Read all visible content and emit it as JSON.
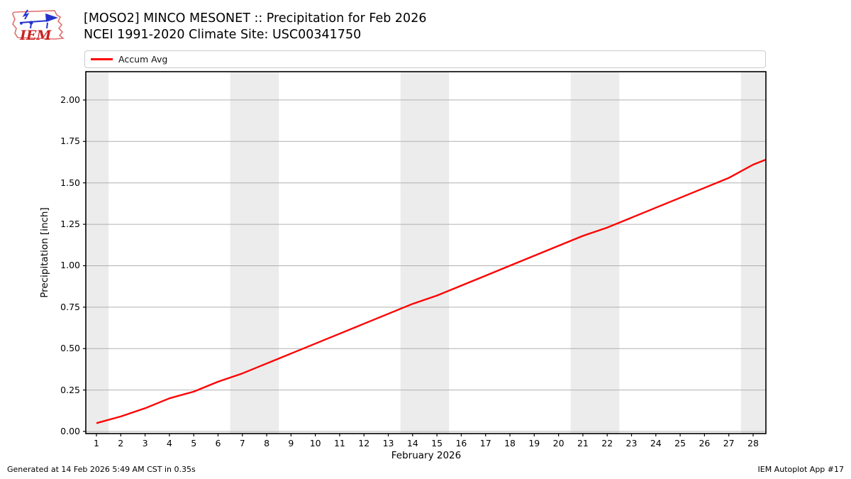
{
  "header": {
    "title": "[MOSO2] MINCO MESONET :: Precipitation for Feb 2026",
    "subtitle": "NCEI 1991-2020 Climate Site: USC00341750",
    "logo_text": "IEM"
  },
  "legend": {
    "items": [
      {
        "label": "Accum Avg",
        "color": "#ff0000"
      }
    ]
  },
  "chart_data": {
    "type": "line",
    "title": "[MOSO2] MINCO MESONET :: Precipitation for Feb 2026",
    "subtitle": "NCEI 1991-2020 Climate Site: USC00341750",
    "xlabel": "February 2026",
    "ylabel": "Precipitation [inch]",
    "xlim": [
      0.563,
      28.525
    ],
    "ylim": [
      -0.013,
      2.171
    ],
    "grid": true,
    "grid_color": "#b0b0b0",
    "band_color": "#ececec",
    "weekend_bands": [
      [
        0.563,
        1.5
      ],
      [
        6.5,
        8.5
      ],
      [
        13.5,
        15.5
      ],
      [
        20.5,
        22.5
      ],
      [
        27.5,
        28.525
      ]
    ],
    "yticks": [
      0.0,
      0.25,
      0.5,
      0.75,
      1.0,
      1.25,
      1.5,
      1.75,
      2.0
    ],
    "xticks": [
      1,
      2,
      3,
      4,
      5,
      6,
      7,
      8,
      9,
      10,
      11,
      12,
      13,
      14,
      15,
      16,
      17,
      18,
      19,
      20,
      21,
      22,
      23,
      24,
      25,
      26,
      27,
      28
    ],
    "x": [
      1,
      2,
      3,
      4,
      5,
      6,
      7,
      8,
      9,
      10,
      11,
      12,
      13,
      14,
      15,
      16,
      17,
      18,
      19,
      20,
      21,
      22,
      23,
      24,
      25,
      26,
      27,
      28,
      28.525
    ],
    "series": [
      {
        "name": "Accum Avg",
        "color": "#ff0000",
        "values": [
          0.05,
          0.09,
          0.14,
          0.2,
          0.24,
          0.3,
          0.35,
          0.41,
          0.47,
          0.53,
          0.59,
          0.65,
          0.71,
          0.77,
          0.82,
          0.88,
          0.94,
          1.0,
          1.06,
          1.12,
          1.18,
          1.23,
          1.29,
          1.35,
          1.41,
          1.47,
          1.53,
          1.61,
          1.64
        ]
      }
    ]
  },
  "footer": {
    "left": "Generated at 14 Feb 2026 5:49 AM CST in 0.35s",
    "right": "IEM Autoplot App #17"
  }
}
